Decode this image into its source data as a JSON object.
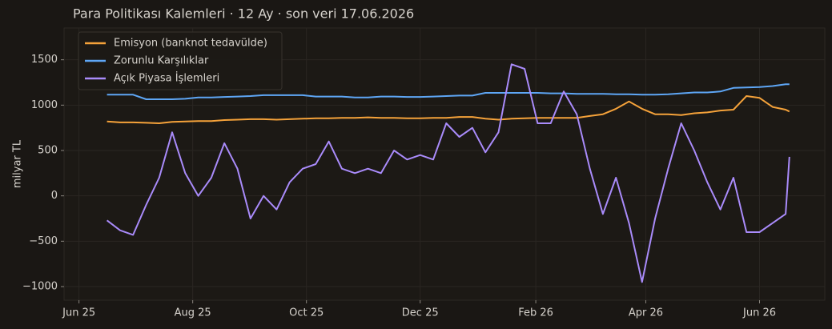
{
  "chart_data": {
    "type": "line",
    "title": "Para Politikası Kalemleri · 12 Ay · son veri 17.06.2026",
    "y_label": "milyar TL",
    "x": [
      "2025-06-16",
      "2025-06-23",
      "2025-06-30",
      "2025-07-07",
      "2025-07-14",
      "2025-07-21",
      "2025-07-28",
      "2025-08-04",
      "2025-08-11",
      "2025-08-18",
      "2025-08-25",
      "2025-09-01",
      "2025-09-08",
      "2025-09-15",
      "2025-09-22",
      "2025-09-29",
      "2025-10-06",
      "2025-10-13",
      "2025-10-20",
      "2025-10-27",
      "2025-11-03",
      "2025-11-10",
      "2025-11-17",
      "2025-11-24",
      "2025-12-01",
      "2025-12-08",
      "2025-12-15",
      "2025-12-22",
      "2025-12-29",
      "2026-01-05",
      "2026-01-12",
      "2026-01-19",
      "2026-01-26",
      "2026-02-02",
      "2026-02-09",
      "2026-02-16",
      "2026-02-23",
      "2026-03-02",
      "2026-03-09",
      "2026-03-16",
      "2026-03-23",
      "2026-03-30",
      "2026-04-06",
      "2026-04-13",
      "2026-04-20",
      "2026-04-27",
      "2026-05-04",
      "2026-05-11",
      "2026-05-18",
      "2026-05-25",
      "2026-06-01",
      "2026-06-08",
      "2026-06-15",
      "2026-06-17"
    ],
    "series": [
      {
        "name": "Emisyon (banknot tedavülde)",
        "color": "#f5a23a",
        "values": [
          820,
          810,
          810,
          805,
          800,
          815,
          820,
          825,
          825,
          835,
          840,
          845,
          845,
          840,
          845,
          850,
          855,
          855,
          860,
          860,
          865,
          860,
          860,
          855,
          855,
          860,
          860,
          870,
          870,
          850,
          840,
          850,
          855,
          860,
          860,
          860,
          860,
          880,
          900,
          960,
          1040,
          960,
          900,
          900,
          890,
          910,
          920,
          940,
          950,
          1100,
          1080,
          980,
          950,
          930
        ]
      },
      {
        "name": "Zorunlu Karşılıklar",
        "color": "#5ea6f5",
        "values": [
          1115,
          1115,
          1115,
          1065,
          1065,
          1065,
          1070,
          1085,
          1085,
          1090,
          1095,
          1100,
          1110,
          1110,
          1110,
          1110,
          1095,
          1095,
          1095,
          1085,
          1085,
          1095,
          1095,
          1090,
          1090,
          1095,
          1100,
          1105,
          1105,
          1135,
          1135,
          1135,
          1135,
          1135,
          1130,
          1130,
          1125,
          1125,
          1125,
          1120,
          1120,
          1115,
          1115,
          1120,
          1130,
          1140,
          1140,
          1150,
          1190,
          1195,
          1200,
          1210,
          1230,
          1230
        ]
      },
      {
        "name": "Açık Piyasa İşlemleri",
        "color": "#a98bfa",
        "values": [
          -270,
          -380,
          -430,
          -100,
          200,
          700,
          250,
          0,
          200,
          580,
          300,
          -250,
          0,
          -150,
          150,
          300,
          350,
          600,
          300,
          250,
          300,
          250,
          500,
          400,
          450,
          400,
          800,
          650,
          750,
          480,
          700,
          1450,
          1400,
          800,
          800,
          1150,
          900,
          300,
          -200,
          200,
          -300,
          -950,
          -250,
          300,
          800,
          500,
          150,
          -150,
          200,
          -400,
          -400,
          -300,
          -200,
          430
        ]
      }
    ],
    "xlim": [
      "2025-05-24",
      "2026-07-06"
    ],
    "xticks": [
      {
        "value": "2025-06-01",
        "label": "Jun 25"
      },
      {
        "value": "2025-08-01",
        "label": "Aug 25"
      },
      {
        "value": "2025-10-01",
        "label": "Oct 25"
      },
      {
        "value": "2025-12-01",
        "label": "Dec 25"
      },
      {
        "value": "2026-02-01",
        "label": "Feb 26"
      },
      {
        "value": "2026-04-01",
        "label": "Apr 26"
      },
      {
        "value": "2026-06-01",
        "label": "Jun 26"
      }
    ],
    "ylim": [
      -1150,
      1850
    ],
    "yticks": [
      {
        "value": -1000,
        "label": "−1000"
      },
      {
        "value": -500,
        "label": "−500"
      },
      0,
      500,
      1000,
      1500
    ],
    "grid": true,
    "legend": "upper left"
  }
}
